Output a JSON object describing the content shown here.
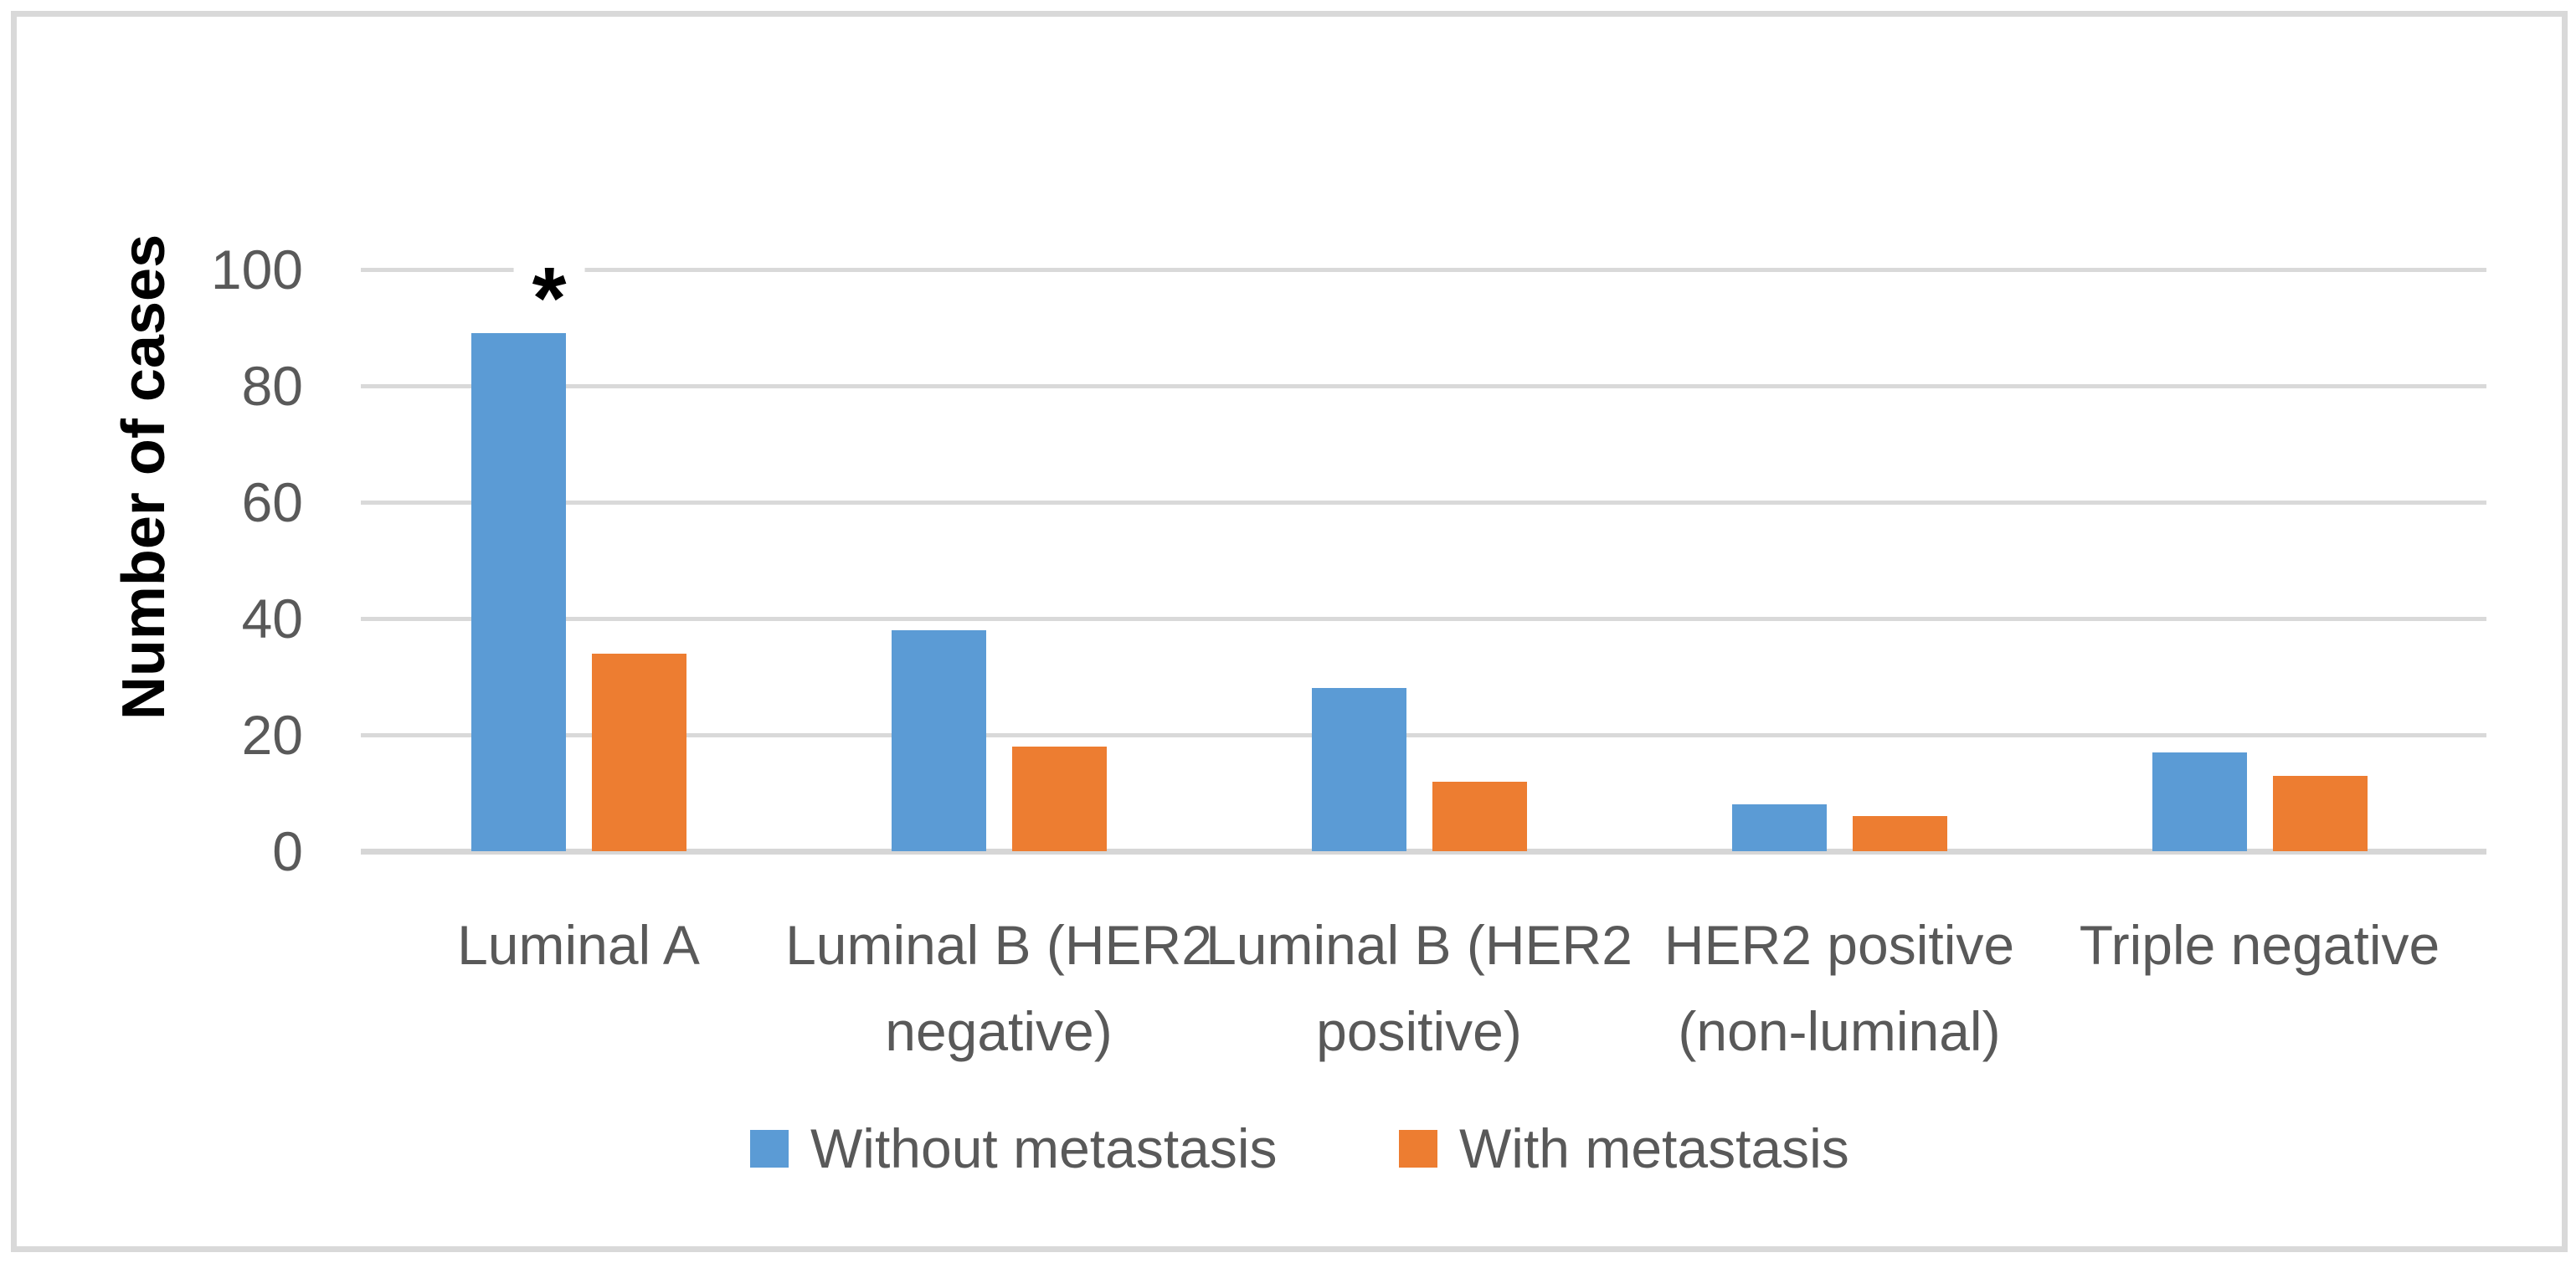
{
  "chart_data": {
    "type": "bar",
    "title": "",
    "xlabel": "",
    "ylabel": "Number of cases",
    "ylim": [
      0,
      100
    ],
    "yticks": [
      0,
      20,
      40,
      60,
      80,
      100
    ],
    "grid": true,
    "legend_position": "bottom",
    "categories": [
      "Luminal A",
      "Luminal B (HER2\nnegative)",
      "Luminal B (HER2\npositive)",
      "HER2 positive\n(non-luminal)",
      "Triple negative"
    ],
    "series": [
      {
        "name": "Without metastasis",
        "color": "#5B9BD5",
        "values": [
          89,
          38,
          28,
          8,
          17
        ]
      },
      {
        "name": "With metastasis",
        "color": "#ED7D31",
        "values": [
          34,
          18,
          12,
          6,
          13
        ]
      }
    ],
    "annotation": {
      "symbol": "*",
      "category": "Luminal A",
      "series": "Without metastasis",
      "meaning": "statistical significance marker above the tallest bar"
    }
  },
  "colors": {
    "series_without_metastasis": "#5B9BD5",
    "series_with_metastasis": "#ED7D31",
    "gridline": "#D9D9D9",
    "axis_line": "#D6D6D6",
    "label_text": "#595959",
    "axis_title_text": "#000000",
    "frame_border": "#D9D9D9",
    "background": "#FFFFFF"
  }
}
